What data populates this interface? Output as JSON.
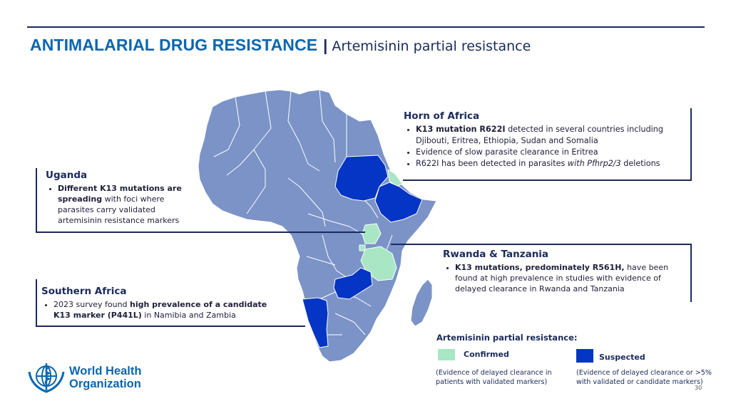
{
  "header": {
    "title": "ANTIMALARIAL DRUG RESISTANCE",
    "separator": "|",
    "subtitle": "Artemisinin partial resistance"
  },
  "colors": {
    "navy": "#1a2a5c",
    "title_blue": "#0a66b0",
    "base_country": "#7b93c6",
    "confirmed": "#a8e6c4",
    "suspected": "#0535c4"
  },
  "callouts": {
    "horn": {
      "title": "Horn of Africa",
      "b1_bold": "K13 mutation R622I",
      "b1_rest": " detected in several countries including Djibouti, Eritrea, Ethiopia, Sudan and Somalia",
      "b2": "Evidence of slow parasite clearance in Eritrea",
      "b3_pre": "R622I has been detected in parasites ",
      "b3_italic": "with Pfhrp2/3",
      "b3_post": " deletions"
    },
    "uganda": {
      "title": "Uganda",
      "b1_bold": "Different K13 mutations are spreading",
      "b1_rest": " with foci where parasites carry validated artemisinin resistance markers"
    },
    "rwanda_tanzania": {
      "title": "Rwanda & Tanzania",
      "b1_bold": "K13 mutations, predominately R561H,",
      "b1_rest": " have been found at high prevalence in studies with evidence of delayed clearance in Rwanda and Tanzania"
    },
    "southern": {
      "title": "Southern Africa",
      "b1_pre": "2023 survey found ",
      "b1_bold": "high prevalence of a candidate K13 marker (P441L)",
      "b1_rest": " in Namibia and Zambia"
    }
  },
  "legend": {
    "title": "Artemisinin partial resistance:",
    "confirmed_label": "Confirmed",
    "confirmed_note": "(Evidence of delayed clearance in patients with validated markers)",
    "suspected_label": "Suspected",
    "suspected_note": "(Evidence of delayed clearance or >5% with validated or candidate markers)"
  },
  "logo": {
    "line1": "World Health",
    "line2": "Organization"
  },
  "page_number": "30"
}
